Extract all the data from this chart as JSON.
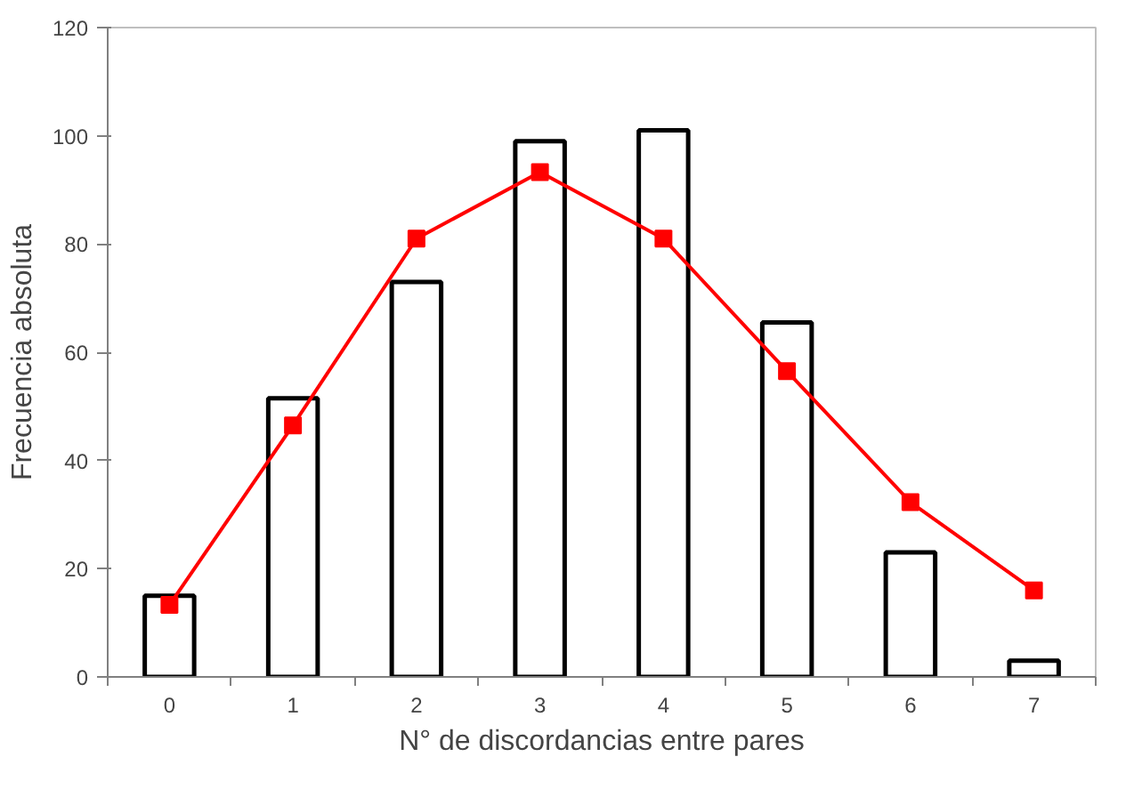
{
  "chart_data": {
    "type": "bar",
    "xlabel": "N° de discordancias entre pares",
    "ylabel": "Frecuencia absoluta",
    "categories": [
      "0",
      "1",
      "2",
      "3",
      "4",
      "5",
      "6",
      "7"
    ],
    "series": [
      {
        "color": "#ffffff",
        "values": [
          15,
          51.5,
          73,
          99,
          101,
          65.5,
          23,
          3
        ]
      },
      {
        "type": "line",
        "color": "#ff0000",
        "values": [
          13.3,
          46.5,
          81,
          93.3,
          81,
          56.5,
          32.3,
          16
        ]
      }
    ],
    "ylim": [
      0,
      120
    ],
    "yticks": [
      0,
      20,
      40,
      60,
      80,
      100,
      120
    ],
    "grid": false,
    "marker": "square",
    "line_style": "solid"
  }
}
